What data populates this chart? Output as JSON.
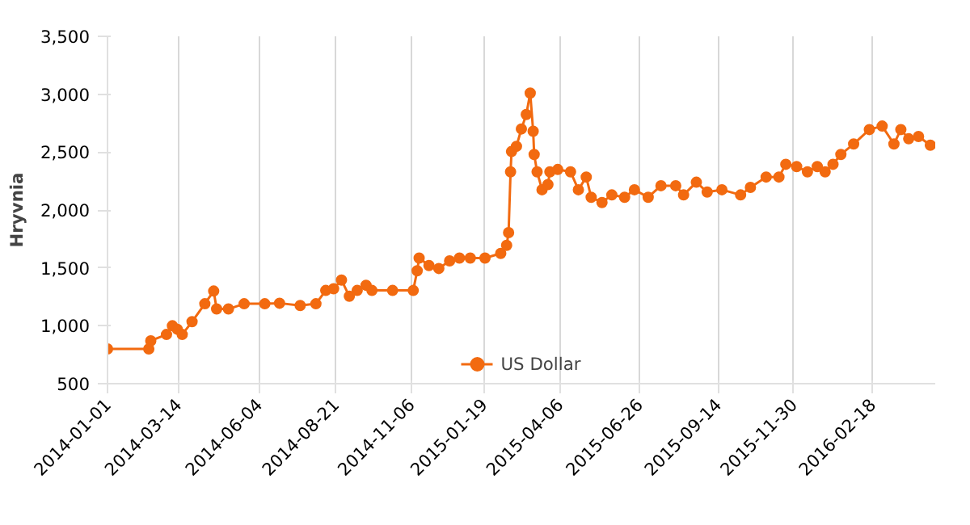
{
  "chart_data": {
    "type": "line",
    "ylabel": "Hryvnia",
    "marker": "circle",
    "line_style": "solid",
    "grid": "x",
    "legend": "bottom",
    "xlim": [
      "2014-01-01",
      "2016-04-22"
    ],
    "xticks": [
      {
        "value": "2014-01-01",
        "label": "2014-01-01"
      },
      {
        "value": "2014-03-14",
        "label": "2014-03-14"
      },
      {
        "value": "2014-06-04",
        "label": "2014-06-04"
      },
      {
        "value": "2014-08-21",
        "label": "2014-08-21"
      },
      {
        "value": "2014-11-06",
        "label": "2014-11-06"
      },
      {
        "value": "2015-01-19",
        "label": "2015-01-19"
      },
      {
        "value": "2015-04-06",
        "label": "2015-04-06"
      },
      {
        "value": "2015-06-26",
        "label": "2015-06-26"
      },
      {
        "value": "2015-09-14",
        "label": "2015-09-14"
      },
      {
        "value": "2015-11-30",
        "label": "2015-11-30"
      },
      {
        "value": "2016-02-18",
        "label": "2016-02-18"
      }
    ],
    "ylim": [
      500,
      3500
    ],
    "yticks": [
      {
        "value": 500,
        "label": "500"
      },
      {
        "value": 1000,
        "label": "1,000"
      },
      {
        "value": 1500,
        "label": "1,500"
      },
      {
        "value": 2000,
        "label": "2,000"
      },
      {
        "value": 2500,
        "label": "2,500"
      },
      {
        "value": 3000,
        "label": "3,000"
      },
      {
        "value": 3500,
        "label": "3,500"
      }
    ],
    "x": [
      "2014-01-01",
      "2014-02-12",
      "2014-02-14",
      "2014-03-02",
      "2014-03-08",
      "2014-03-13",
      "2014-03-18",
      "2014-03-28",
      "2014-04-10",
      "2014-04-19",
      "2014-04-22",
      "2014-05-04",
      "2014-05-20",
      "2014-06-10",
      "2014-06-25",
      "2014-07-16",
      "2014-08-01",
      "2014-08-11",
      "2014-08-19",
      "2014-08-27",
      "2014-09-04",
      "2014-09-12",
      "2014-09-21",
      "2014-09-27",
      "2014-10-18",
      "2014-11-08",
      "2014-11-12",
      "2014-11-14",
      "2014-11-24",
      "2014-12-04",
      "2014-12-15",
      "2014-12-25",
      "2015-01-05",
      "2015-01-20",
      "2015-02-05",
      "2015-02-11",
      "2015-02-13",
      "2015-02-15",
      "2015-02-16",
      "2015-02-21",
      "2015-02-26",
      "2015-03-03",
      "2015-03-07",
      "2015-03-10",
      "2015-03-11",
      "2015-03-14",
      "2015-03-19",
      "2015-03-25",
      "2015-03-27",
      "2015-04-04",
      "2015-04-17",
      "2015-04-25",
      "2015-05-03",
      "2015-05-08",
      "2015-05-19",
      "2015-05-29",
      "2015-06-11",
      "2015-06-21",
      "2015-07-05",
      "2015-07-18",
      "2015-08-02",
      "2015-08-10",
      "2015-08-23",
      "2015-09-03",
      "2015-09-18",
      "2015-10-07",
      "2015-10-17",
      "2015-11-02",
      "2015-11-15",
      "2015-11-22",
      "2015-12-03",
      "2015-12-14",
      "2015-12-24",
      "2016-01-01",
      "2016-01-09",
      "2016-01-17",
      "2016-01-30",
      "2016-02-15",
      "2016-02-28",
      "2016-03-11",
      "2016-03-18",
      "2016-03-26",
      "2016-04-05",
      "2016-04-17"
    ],
    "series": [
      {
        "name": "US Dollar",
        "color": "#f26a10",
        "values": [
          800,
          800,
          870,
          925,
          1000,
          970,
          925,
          1035,
          1190,
          1300,
          1145,
          1145,
          1190,
          1190,
          1195,
          1175,
          1190,
          1305,
          1320,
          1395,
          1255,
          1305,
          1350,
          1305,
          1305,
          1305,
          1475,
          1585,
          1520,
          1495,
          1560,
          1585,
          1585,
          1585,
          1625,
          1695,
          1805,
          2330,
          2505,
          2550,
          2700,
          2825,
          3010,
          2680,
          2480,
          2330,
          2175,
          2220,
          2330,
          2350,
          2330,
          2175,
          2285,
          2110,
          2065,
          2130,
          2110,
          2175,
          2110,
          2210,
          2210,
          2130,
          2240,
          2155,
          2175,
          2130,
          2195,
          2285,
          2285,
          2395,
          2375,
          2330,
          2375,
          2330,
          2395,
          2480,
          2570,
          2695,
          2725,
          2570,
          2695,
          2615,
          2635,
          2560
        ]
      }
    ]
  }
}
